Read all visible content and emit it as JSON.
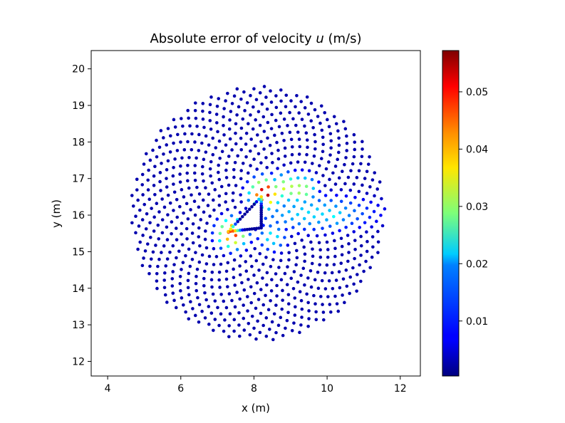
{
  "chart_data": {
    "type": "scatter",
    "title": "Absolute error of velocity ",
    "title_var": "u",
    "title_unit": " (m/s)",
    "xlabel": "x (m)",
    "ylabel": "y (m)",
    "xlim": [
      3.55,
      12.55
    ],
    "ylim": [
      11.6,
      20.5
    ],
    "xticks": [
      4,
      6,
      8,
      10,
      12
    ],
    "yticks": [
      12,
      13,
      14,
      15,
      16,
      17,
      18,
      19,
      20
    ],
    "grid": false,
    "colormap": "jet",
    "colorbar": {
      "min": 0.0004,
      "max": 0.0572,
      "ticks": [
        0.01,
        0.02,
        0.03,
        0.04,
        0.05
      ],
      "tick_labels": [
        "0.01",
        "0.02",
        "0.03",
        "0.04",
        "0.05"
      ]
    },
    "mesh": {
      "description": "points on a circular domain of radius ~3.5 m centred at (8.1, 16.05) around a triangular obstacle",
      "center": [
        8.1,
        16.05
      ],
      "outer_radius": 3.48,
      "obstacle_triangle": [
        [
          7.3,
          15.55
        ],
        [
          8.2,
          15.65
        ],
        [
          8.2,
          16.5
        ]
      ]
    },
    "error_hotspots": [
      {
        "x": 8.3,
        "y": 16.6,
        "error": 0.057
      },
      {
        "x": 7.4,
        "y": 15.5,
        "error": 0.05
      },
      {
        "x": 8.9,
        "y": 16.75,
        "error": 0.035
      },
      {
        "x": 9.3,
        "y": 16.7,
        "error": 0.033
      },
      {
        "x": 10.2,
        "y": 16.0,
        "error": 0.022
      },
      {
        "x": 8.5,
        "y": 15.4,
        "error": 0.022
      }
    ]
  }
}
